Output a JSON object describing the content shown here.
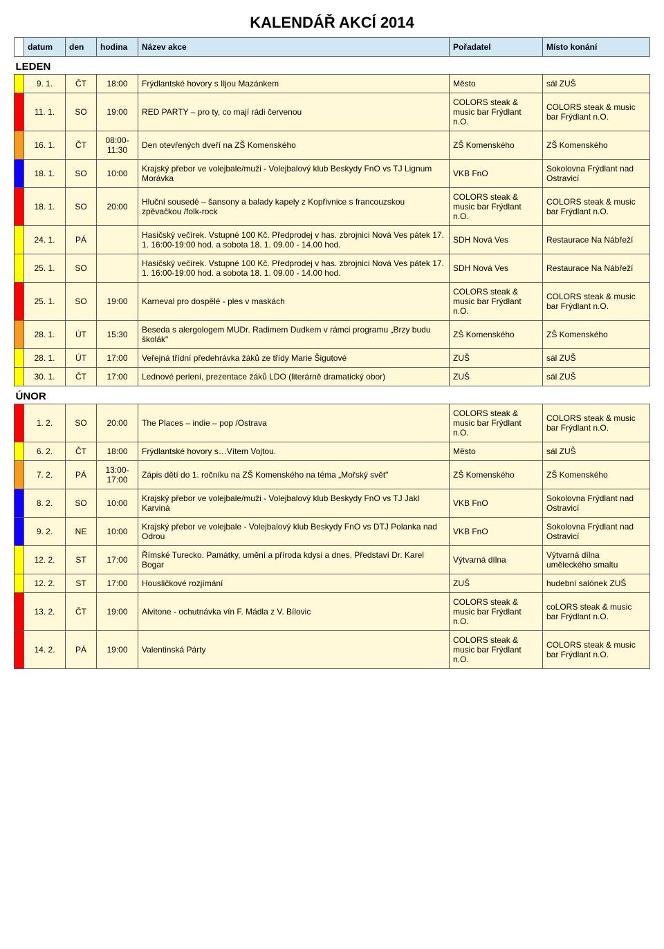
{
  "title": "KALENDÁŘ AKCÍ 2014",
  "headers": {
    "datum": "datum",
    "den": "den",
    "hodina": "hodina",
    "nazev": "Název akce",
    "poradatel": "Pořadatel",
    "misto": "Místo konání"
  },
  "headerStyle": {
    "bg": "#cfe6f3",
    "barBg": "#ffffff"
  },
  "months": [
    {
      "label": "LEDEN",
      "rows": [
        {
          "bar": "#ffff00",
          "bg": "#fff9d7",
          "date": "9. 1.",
          "day": "ČT",
          "time": "18:00",
          "name": "Frýdlantské hovory s Iljou Mazánkem",
          "org": "Město",
          "loc": "sál ZUŠ"
        },
        {
          "bar": "#ff0000",
          "bg": "#fff9d7",
          "date": "11. 1.",
          "day": "SO",
          "time": "19:00",
          "name": "RED PARTY – pro ty, co mají rádi červenou",
          "org": "COLORS steak & music bar Frýdlant n.O.",
          "loc": "COLORS steak & music bar Frýdlant n.O."
        },
        {
          "bar": "#f89a1d",
          "bg": "#fff9d7",
          "date": "16. 1.",
          "day": "ČT",
          "time": "08:00-11:30",
          "name": "Den otevřených dveří na ZŠ Komenského",
          "org": "ZŠ Komenského",
          "loc": "ZŠ Komenského"
        },
        {
          "bar": "#1000ff",
          "bg": "#fff9d7",
          "date": "18. 1.",
          "day": "SO",
          "time": "10:00",
          "name": "Krajský přebor ve volejbale/muži - Volejbalový klub Beskydy FnO vs TJ Lignum Morávka",
          "org": "VKB FnO",
          "loc": "Sokolovna Frýdlant nad Ostravicí"
        },
        {
          "bar": "#ff0000",
          "bg": "#fff9d7",
          "date": "18. 1.",
          "day": "SO",
          "time": "20:00",
          "name": "Hluční sousedé – šansony a balady kapely z Kopřivnice s francouzskou zpěvačkou /folk-rock",
          "org": "COLORS steak & music bar Frýdlant n.O.",
          "loc": "COLORS steak & music bar Frýdlant n.O."
        },
        {
          "bar": "#ffff00",
          "bg": "#fff9d7",
          "date": "24. 1.",
          "day": "PÁ",
          "time": "",
          "name": "Hasičský večírek. Vstupné 100 Kč. Předprodej v has. zbrojnici Nová Ves pátek 17. 1. 16:00-19:00 hod. a sobota 18. 1. 09.00 - 14.00 hod.",
          "org": "SDH Nová Ves",
          "loc": "Restaurace Na Nábřeží"
        },
        {
          "bar": "#ffff00",
          "bg": "#fff9d7",
          "date": "25. 1.",
          "day": "SO",
          "time": "",
          "name": "Hasičský večírek. Vstupné 100 Kč. Předprodej v has. zbrojnici Nová Ves pátek 17. 1. 16:00-19:00 hod. a sobota 18. 1. 09.00 - 14.00 hod.",
          "org": "SDH Nová Ves",
          "loc": "Restaurace Na Nábřeží"
        },
        {
          "bar": "#ff0000",
          "bg": "#fff9d7",
          "date": "25. 1.",
          "day": "SO",
          "time": "19:00",
          "name": "Karneval pro dospělé - ples v maskách",
          "org": "COLORS steak & music bar Frýdlant n.O.",
          "loc": "COLORS steak & music bar Frýdlant n.O."
        },
        {
          "bar": "#f89a1d",
          "bg": "#fff9d7",
          "date": "28. 1.",
          "day": "ÚT",
          "time": "15:30",
          "name": "Beseda s alergologem MUDr. Radimem Dudkem v rámci programu „Brzy budu školák\"",
          "org": "ZŠ Komenského",
          "loc": "ZŠ Komenského"
        },
        {
          "bar": "#ffff00",
          "bg": "#fff9d7",
          "date": "28. 1.",
          "day": "ÚT",
          "time": "17:00",
          "name": "Veřejná třídní předehrávka žáků ze třídy Marie Šigutové",
          "org": "ZUŠ",
          "loc": "sál ZUŠ"
        },
        {
          "bar": "#ffff00",
          "bg": "#fff9d7",
          "date": "30. 1.",
          "day": "ČT",
          "time": "17:00",
          "name": "Lednové perlení, prezentace žáků LDO (literárně dramatický obor)",
          "org": "ZUŠ",
          "loc": "sál ZUŠ"
        }
      ]
    },
    {
      "label": "ÚNOR",
      "rows": [
        {
          "bar": "#ff0000",
          "bg": "#fff9d7",
          "date": "1. 2.",
          "day": "SO",
          "time": "20:00",
          "name": "The Places – indie – pop /Ostrava",
          "org": "COLORS steak & music bar Frýdlant n.O.",
          "loc": "COLORS steak & music bar Frýdlant n.O."
        },
        {
          "bar": "#ffff00",
          "bg": "#fff9d7",
          "date": "6. 2.",
          "day": "ČT",
          "time": "18:00",
          "name": "Frýdlantské hovory s…Vítem Vojtou.",
          "org": "Město",
          "loc": "sál ZUŠ"
        },
        {
          "bar": "#f89a1d",
          "bg": "#fff9d7",
          "date": "7. 2.",
          "day": "PÁ",
          "time": "13:00-17:00",
          "name": "Zápis dětí do 1. ročníku na ZŠ Komenského na téma „Mořský svět\"",
          "org": "ZŠ Komenského",
          "loc": "ZŠ Komenského"
        },
        {
          "bar": "#1000ff",
          "bg": "#fff9d7",
          "date": "8. 2.",
          "day": "SO",
          "time": "10:00",
          "name": "Krajský přebor ve volejbale/muži - Volejbalový klub Beskydy FnO vs TJ Jakl Karviná",
          "org": "VKB FnO",
          "loc": "Sokolovna Frýdlant nad Ostravicí"
        },
        {
          "bar": "#1000ff",
          "bg": "#fff9d7",
          "date": "9. 2.",
          "day": "NE",
          "time": "10:00",
          "name": "Krajský přebor ve volejbale - Volejbalový klub Beskydy FnO vs DTJ Polanka nad Odrou",
          "org": "VKB FnO",
          "loc": "Sokolovna Frýdlant nad Ostravicí"
        },
        {
          "bar": "#ffff00",
          "bg": "#fff9d7",
          "date": "12. 2.",
          "day": "ST",
          "time": "17:00",
          "name": "Římské Turecko. Památky, umění  a příroda kdysi a dnes. Představí Dr. Karel Bogar",
          "org": "Výtvarná dílna",
          "loc": "Výtvarná dílna uměleckého smaltu"
        },
        {
          "bar": "#ffff00",
          "bg": "#fff9d7",
          "date": "12. 2.",
          "day": "ST",
          "time": "17:00",
          "name": "Housličkové rozjímání",
          "org": "ZUŠ",
          "loc": "hudební salónek ZUŠ"
        },
        {
          "bar": "#ff0000",
          "bg": "#fff9d7",
          "date": "13. 2.",
          "day": "ČT",
          "time": "19:00",
          "name": "Alvitone - ochutnávka vín F. Mádla z V. Bílovic",
          "org": "COLORS steak & music bar Frýdlant n.O.",
          "loc": "coLORS steak & music bar Frýdlant n.O."
        },
        {
          "bar": "#ff0000",
          "bg": "#fff9d7",
          "date": "14. 2.",
          "day": "PÁ",
          "time": "19:00",
          "name": "Valentinská Párty",
          "org": "COLORS steak & music bar Frýdlant n.O.",
          "loc": "COLORS steak & music bar Frýdlant n.O."
        }
      ]
    }
  ]
}
